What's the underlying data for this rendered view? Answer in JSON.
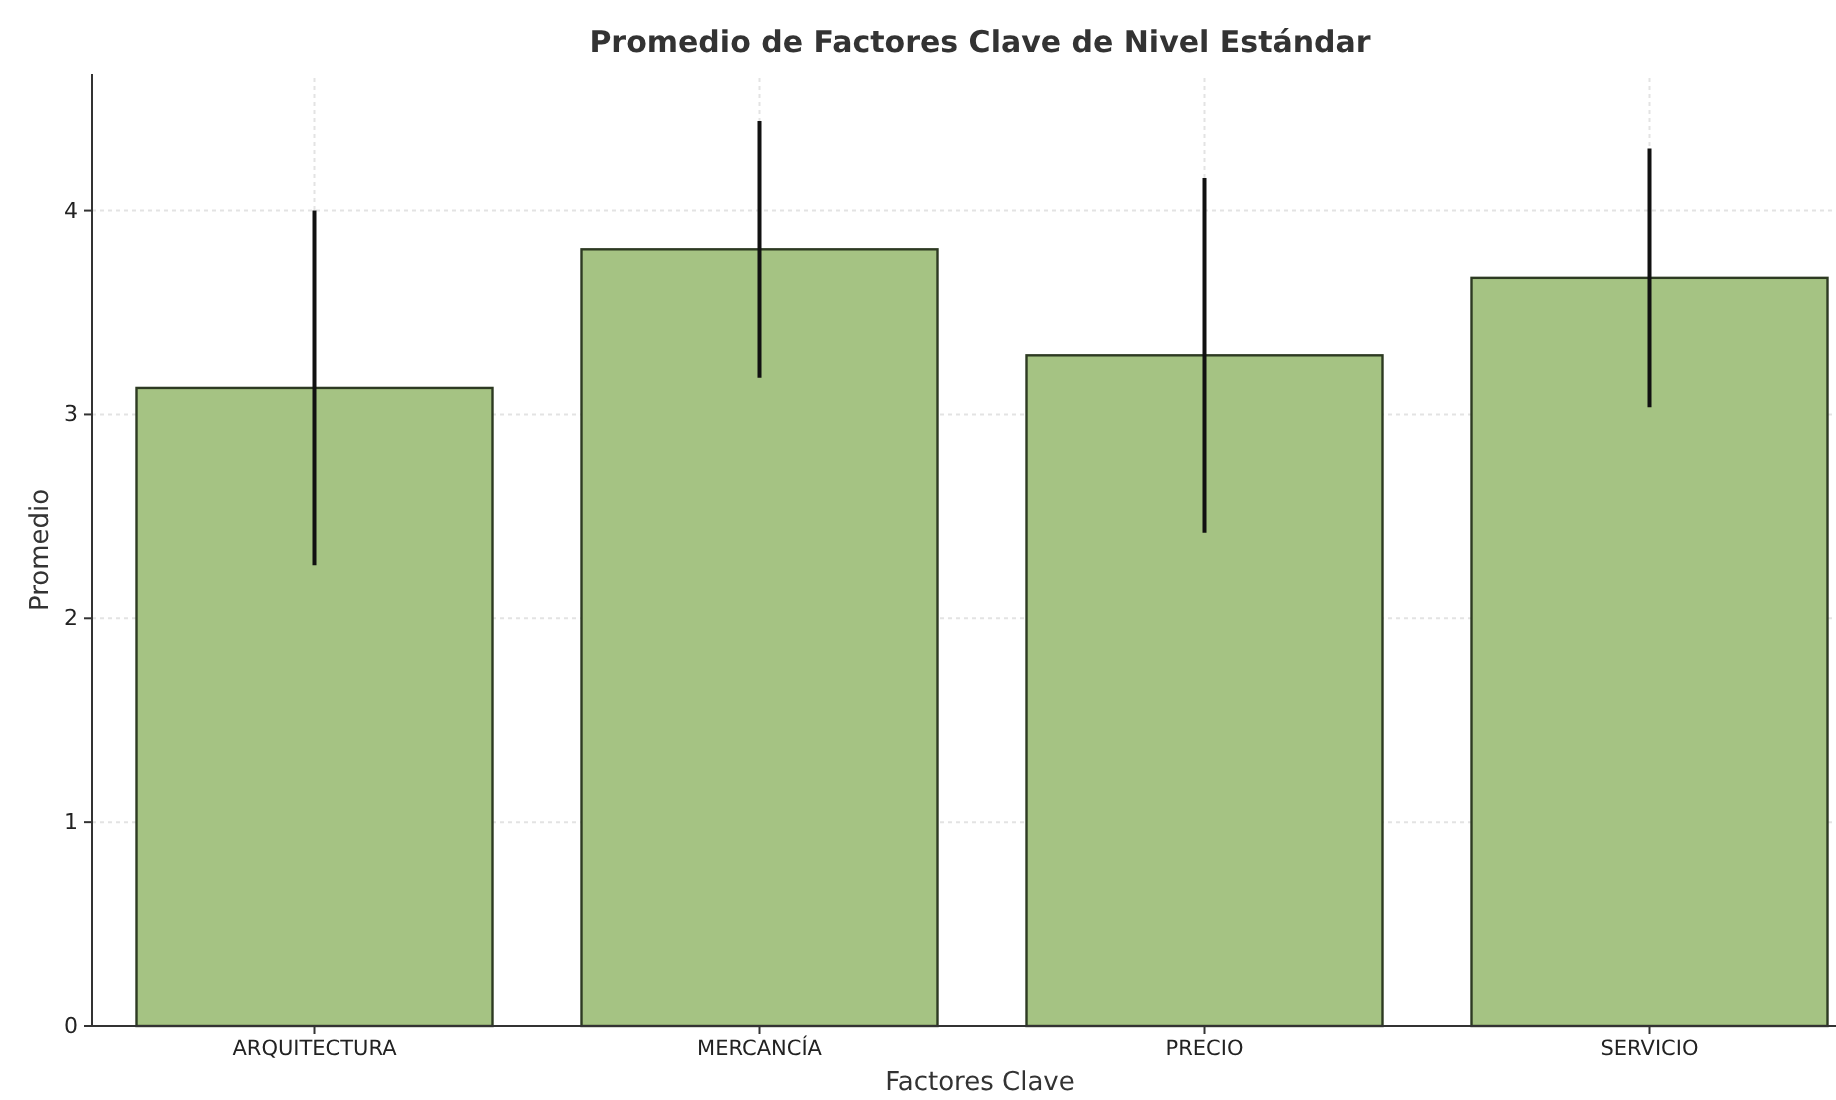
{
  "chart_data": {
    "type": "bar",
    "title": "Promedio de Factores Clave de Nivel Estándar",
    "xlabel": "Factores Clave",
    "ylabel": "Promedio",
    "categories": [
      "ARQUITECTURA",
      "MERCANCÍA",
      "PRECIO",
      "SERVICIO"
    ],
    "values": [
      3.13,
      3.81,
      3.29,
      3.67
    ],
    "errors": [
      0.87,
      0.63,
      0.87,
      0.635
    ],
    "color": "#a5c383",
    "ylim": [
      0,
      4.67
    ],
    "yticks": [
      0,
      1,
      2,
      3,
      4
    ],
    "grid": true
  }
}
